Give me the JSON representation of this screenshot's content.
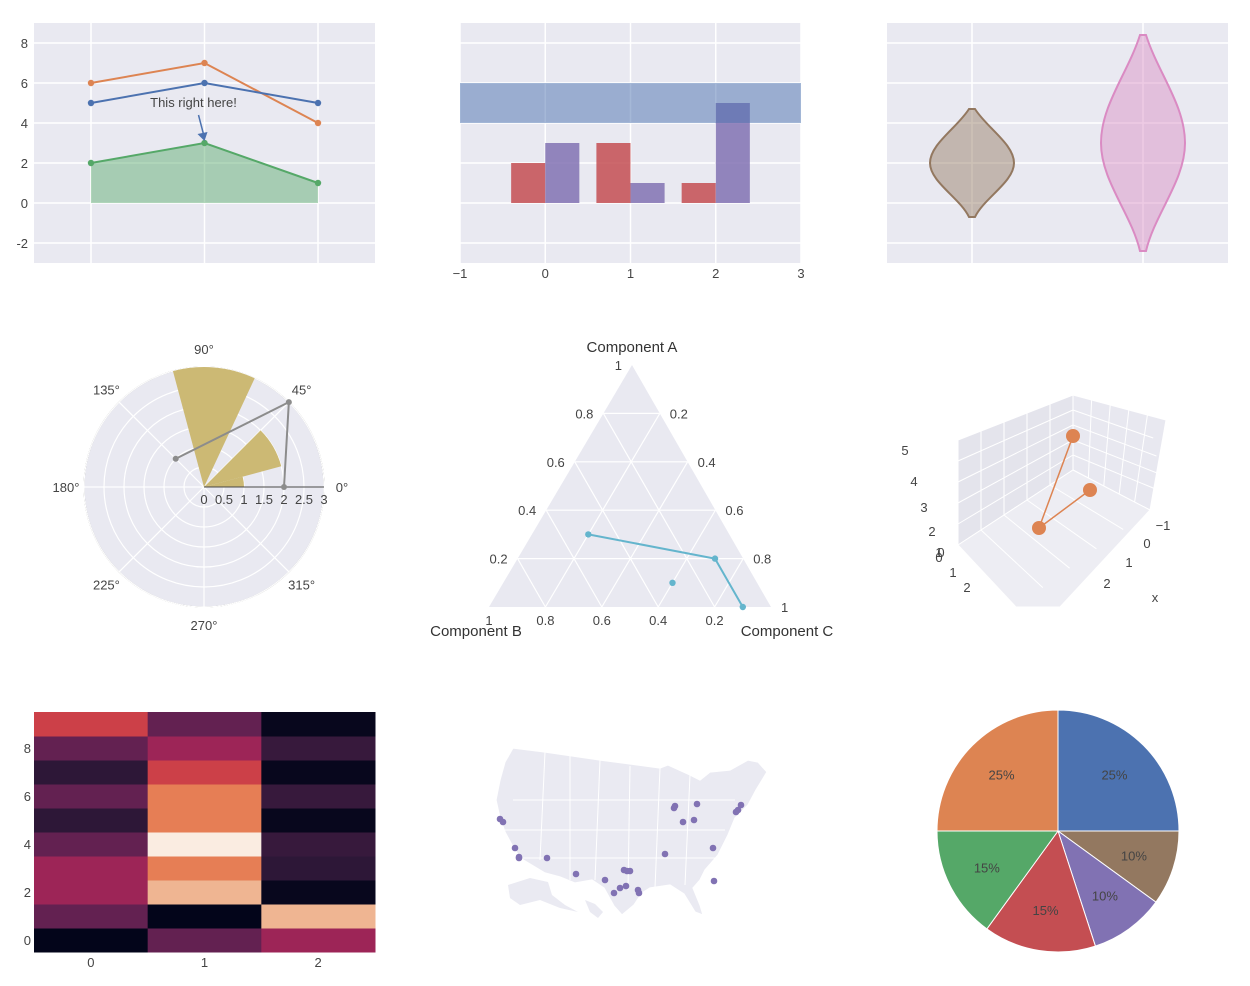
{
  "colors": {
    "plot_bg": "#e9e9f1",
    "grid": "#ffffff",
    "blue": "#4c72b0",
    "orange": "#dd8452",
    "green": "#55a868",
    "red": "#c44e52",
    "purple": "#8172b3",
    "brown": "#937860",
    "pink": "#da8bc3",
    "olive": "#ccb974",
    "gray": "#8c8c8c",
    "cyan": "#64b5cd"
  },
  "chart_data": [
    {
      "type": "line",
      "id": "lines",
      "x": [
        0,
        1,
        2
      ],
      "series": [
        {
          "values": [
            6,
            7,
            4
          ],
          "color": "#dd8452"
        },
        {
          "values": [
            5,
            6,
            5
          ],
          "color": "#4c72b0"
        },
        {
          "values": [
            2,
            3,
            1
          ],
          "color": "#55a868",
          "fill": "tozero"
        }
      ],
      "annotation": {
        "text": "This right here!",
        "x": 1,
        "y": 3
      },
      "ylim": [
        -3,
        9
      ],
      "yticks": [
        -2,
        0,
        2,
        4,
        6,
        8
      ],
      "grid": true
    },
    {
      "type": "bar",
      "id": "bars",
      "categories": [
        0,
        1,
        2
      ],
      "series": [
        {
          "values": [
            2,
            3,
            1
          ],
          "color": "#c44e52"
        },
        {
          "values": [
            3,
            1,
            5
          ],
          "color": "#8172b3"
        }
      ],
      "band": {
        "y0": 4,
        "y1": 6,
        "color": "#4c72b0"
      },
      "xlim": [
        -1,
        3
      ],
      "ylim": [
        -3,
        9
      ],
      "xticks": [
        "−1",
        "0",
        "1",
        "2",
        "3"
      ],
      "grid": true
    },
    {
      "type": "violin",
      "id": "violins",
      "series": [
        {
          "x": 0,
          "center": 2,
          "min": -0.7,
          "max": 4.7,
          "color": "#937860"
        },
        {
          "x": 1,
          "center": 3,
          "min": -2.4,
          "max": 8.4,
          "color": "#da8bc3"
        }
      ],
      "ylim": [
        -3,
        9
      ],
      "grid": true
    },
    {
      "type": "polar",
      "id": "polar",
      "angular_ticks": [
        "0°",
        "45°",
        "90°",
        "135°",
        "180°",
        "225°",
        "270°",
        "315°"
      ],
      "radial_ticks": [
        "0",
        "0.5",
        "1",
        "1.5",
        "2",
        "2.5",
        "3"
      ],
      "rmax": 3,
      "bars": [
        {
          "theta0": 0,
          "theta1": 15,
          "r": 1,
          "color": "#ccb974"
        },
        {
          "theta0": 15,
          "theta1": 45,
          "r": 2,
          "color": "#ccb974"
        },
        {
          "theta0": 65,
          "theta1": 105,
          "r": 3,
          "color": "#ccb974"
        }
      ],
      "line": {
        "points": [
          [
            2,
            0
          ],
          [
            3,
            45
          ],
          [
            1,
            135
          ]
        ],
        "color": "#8c8c8c"
      }
    },
    {
      "type": "ternary",
      "id": "ternary",
      "axis_titles": {
        "a": "Component A",
        "b": "Component B",
        "c": "Component C"
      },
      "ticks": [
        "0.2",
        "0.4",
        "0.6",
        "0.8",
        "1"
      ],
      "series": [
        {
          "points": [
            [
              0.3,
              0.5,
              0.2
            ],
            [
              0.2,
              0.1,
              0.7
            ],
            [
              0,
              0.1,
              0.9
            ]
          ],
          "color": "#64b5cd"
        },
        {
          "points": [
            [
              0.1,
              0.3,
              0.6
            ]
          ],
          "color": "#64b5cd"
        }
      ]
    },
    {
      "type": "scatter3d",
      "id": "scene3d",
      "z_ticks": [
        "5",
        "4",
        "3",
        "2",
        "1",
        "0"
      ],
      "x_ticks": [
        "−1",
        "0",
        "1",
        "2"
      ],
      "y_ticks": [
        "0",
        "1",
        "2"
      ],
      "x_axis_title": "x",
      "color": "#dd8452"
    },
    {
      "type": "heatmap",
      "id": "heatmap",
      "x": [
        "0",
        "1",
        "2"
      ],
      "yticks": [
        "0",
        "2",
        "4",
        "6",
        "8"
      ],
      "rows_bottom_to_top": [
        [
          0.0,
          0.4,
          0.55
        ],
        [
          0.4,
          0.0,
          0.85
        ],
        [
          0.55,
          0.85,
          0.02
        ],
        [
          0.55,
          0.75,
          0.18
        ],
        [
          0.4,
          1.0,
          0.22
        ],
        [
          0.18,
          0.75,
          0.02
        ],
        [
          0.4,
          0.75,
          0.22
        ],
        [
          0.18,
          0.65,
          0.02
        ],
        [
          0.4,
          0.55,
          0.22
        ],
        [
          0.65,
          0.4,
          0.02
        ]
      ]
    },
    {
      "type": "scattergeo",
      "id": "map",
      "scope": "usa",
      "marker_color": "#8172b3",
      "marker_count": 27
    },
    {
      "type": "pie",
      "id": "pie",
      "values": [
        25,
        10,
        10,
        15,
        15,
        25
      ],
      "labels": [
        "25%",
        "10%",
        "10%",
        "15%",
        "15%",
        "25%"
      ],
      "colors": [
        "#4c72b0",
        "#937860",
        "#8172b3",
        "#c44e52",
        "#55a868",
        "#dd8452"
      ]
    }
  ]
}
